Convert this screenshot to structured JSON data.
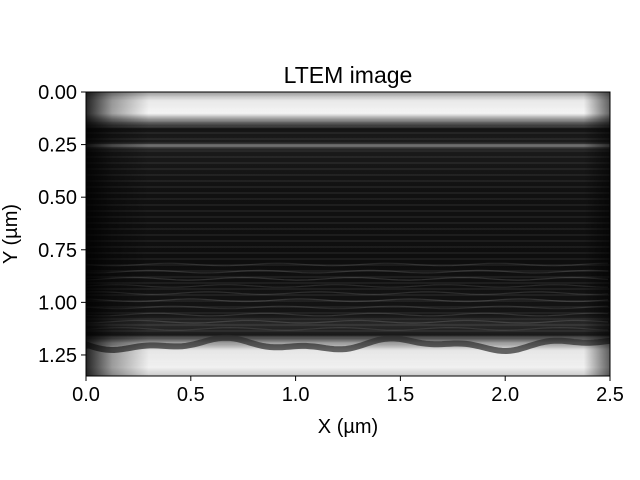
{
  "chart_data": {
    "type": "heatmap",
    "title": "LTEM image",
    "xlabel": "X (µm)",
    "ylabel": "Y (µm)",
    "xlim": [
      0.0,
      2.5
    ],
    "ylim": [
      1.35,
      0.0
    ],
    "y_inverted": true,
    "colormap": "gray",
    "grid": false,
    "x_ticks": [
      {
        "value": 0.0,
        "label": "0.0"
      },
      {
        "value": 0.5,
        "label": "0.5"
      },
      {
        "value": 1.0,
        "label": "1.0"
      },
      {
        "value": 1.5,
        "label": "1.5"
      },
      {
        "value": 2.0,
        "label": "2.0"
      },
      {
        "value": 2.5,
        "label": "2.5"
      }
    ],
    "y_ticks": [
      {
        "value": 0.0,
        "label": "0.00"
      },
      {
        "value": 0.25,
        "label": "0.25"
      },
      {
        "value": 0.5,
        "label": "0.50"
      },
      {
        "value": 0.75,
        "label": "0.75"
      },
      {
        "value": 1.0,
        "label": "1.00"
      },
      {
        "value": 1.25,
        "label": "1.25"
      }
    ],
    "features": {
      "top_bright_band_y": [
        0.0,
        0.12
      ],
      "faint_band_y": 0.25,
      "bottom_bright_band_y": [
        1.2,
        1.35
      ],
      "fringe_rows_y": [
        0.8,
        1.15
      ]
    }
  }
}
